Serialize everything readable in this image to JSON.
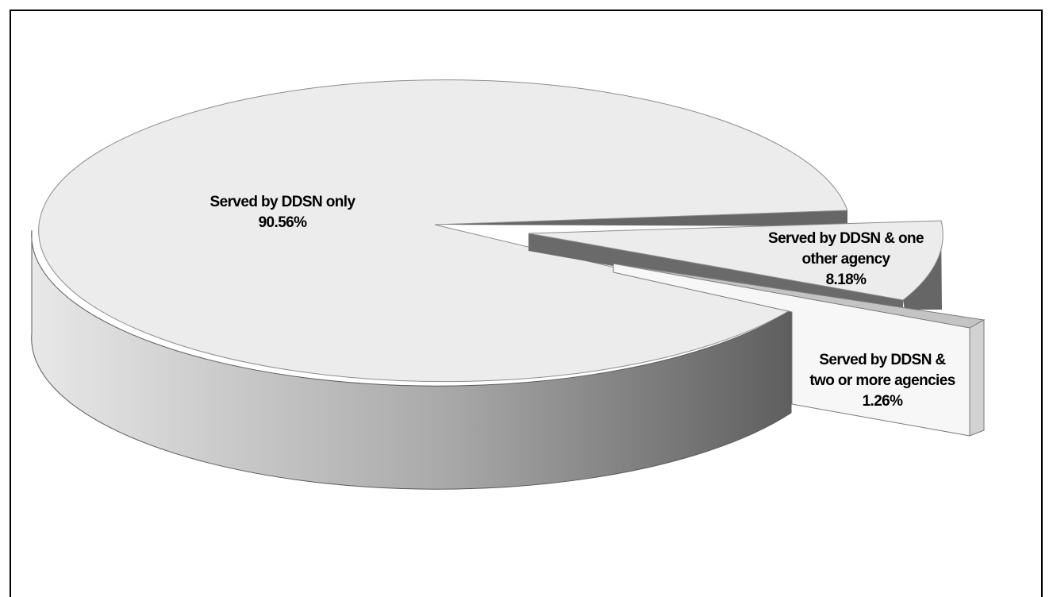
{
  "chart_data": {
    "type": "pie",
    "style": "3d-exploded",
    "title": "",
    "slices": [
      {
        "label": "Served by DDSN only",
        "value": 90.56,
        "value_text": "90.56%",
        "color": "#ececec"
      },
      {
        "label": "Served by DDSN & one other agency",
        "value": 8.18,
        "value_text": "8.18%",
        "color": "#ececec"
      },
      {
        "label": "Served by DDSN & two or more agencies",
        "value": 1.26,
        "value_text": "1.26%",
        "color": "#f7f7f7"
      }
    ],
    "side_gradient": [
      "#ececec",
      "#a6a6a6",
      "#595959"
    ],
    "edge_color": "#595959"
  },
  "labels": {
    "slice0": {
      "line1": "Served by DDSN only",
      "line2": "90.56%"
    },
    "slice1": {
      "line1": "Served by DDSN & one",
      "line2": "other agency",
      "line3": "8.18%"
    },
    "slice2": {
      "line1": "Served by DDSN &",
      "line2": "two or more agencies",
      "line3": "1.26%"
    }
  }
}
